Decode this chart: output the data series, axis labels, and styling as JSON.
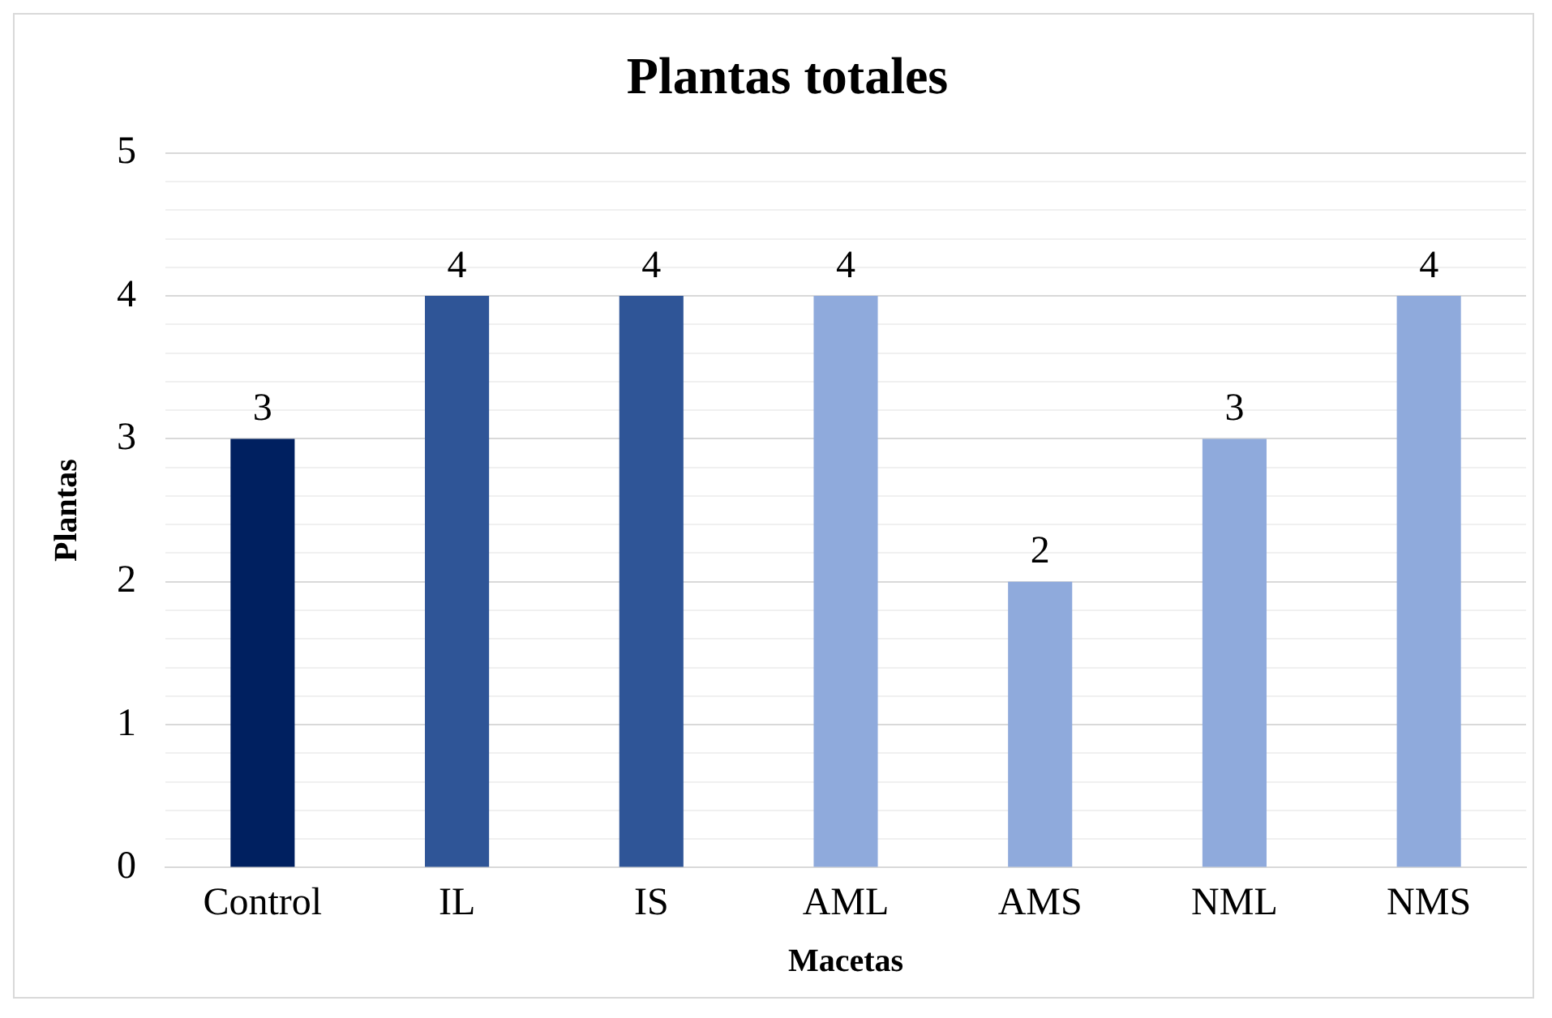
{
  "chart_data": {
    "type": "bar",
    "title": "Plantas totales",
    "xlabel": "Macetas",
    "ylabel": "Plantas",
    "categories": [
      "Control",
      "IL",
      "IS",
      "AML",
      "AMS",
      "NML",
      "NMS"
    ],
    "values": [
      3,
      4,
      4,
      4,
      2,
      3,
      4
    ],
    "colors": [
      "#002060",
      "#2f5597",
      "#2f5597",
      "#8faadc",
      "#8faadc",
      "#8faadc",
      "#8faadc"
    ],
    "ylim": [
      0,
      5
    ],
    "yticks": [
      0,
      {
        "value": 0.2,
        "label": null
      },
      {
        "value": 0.4,
        "label": null
      },
      {
        "value": 0.6,
        "label": null
      },
      {
        "value": 0.8,
        "label": null
      },
      1,
      {
        "value": 1.2,
        "label": null
      },
      {
        "value": 1.4,
        "label": null
      },
      {
        "value": 1.6,
        "label": null
      },
      {
        "value": 1.8,
        "label": null
      },
      2,
      {
        "value": 2.2,
        "label": null
      },
      {
        "value": 2.4,
        "label": null
      },
      {
        "value": 2.6,
        "label": null
      },
      {
        "value": 2.8,
        "label": null
      },
      3,
      {
        "value": 3.2,
        "label": null
      },
      {
        "value": 3.4,
        "label": null
      },
      {
        "value": 3.6,
        "label": null
      },
      {
        "value": 3.8,
        "label": null
      },
      4,
      {
        "value": 4.2,
        "label": null
      },
      {
        "value": 4.4,
        "label": null
      },
      {
        "value": 4.6,
        "label": null
      },
      {
        "value": 4.8,
        "label": null
      },
      5
    ],
    "grid": "y",
    "legend": false,
    "data_labels": true
  }
}
